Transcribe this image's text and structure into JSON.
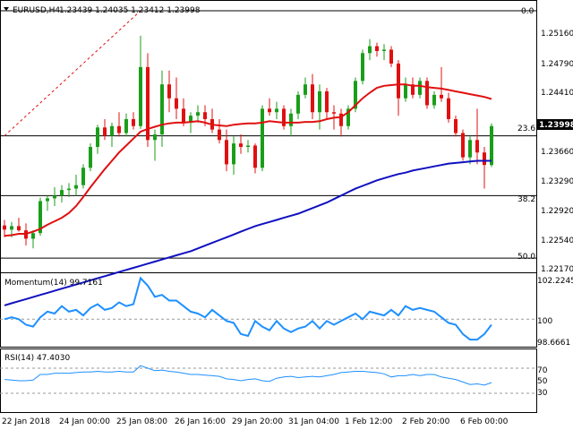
{
  "header": {
    "symbol_tf": "EURUSD,H4",
    "ohlc": "1.23439 1.24035 1.23412 1.23998"
  },
  "price_scale": {
    "labels": [
      "1.25160",
      "1.24790",
      "1.24410",
      "1.23660",
      "1.23290",
      "1.22920",
      "1.22540",
      "1.22170"
    ],
    "current": "1.23998"
  },
  "fibo": {
    "top": "0.0",
    "l236": "23.6",
    "l382": "38.2",
    "l50": "50.0"
  },
  "momentum": {
    "title": "Momentum(14) 99.7161",
    "labels": [
      "102.2245",
      "100",
      "98.6661"
    ]
  },
  "rsi": {
    "title": "RSI(14) 47.4030",
    "labels": [
      "70",
      "50",
      "30"
    ]
  },
  "time_axis": [
    "22 Jan 2018",
    "24 Jan 00:00",
    "25 Jan 08:00",
    "26 Jan 16:00",
    "29 Jan 20:00",
    "31 Jan 04:00",
    "1 Feb 12:00",
    "2 Feb 20:00",
    "6 Feb 00:00"
  ],
  "colors": {
    "bull": "#1a9e1a",
    "bear": "#e01010",
    "sma20": "#e01010",
    "sma100": "#1010c0",
    "indicator": "#1e90ff",
    "fibo_line": "#000000",
    "trend": "#e01010"
  },
  "chart_data": [
    {
      "type": "candlestick",
      "title": "EURUSD,H4",
      "ylim": [
        1.2205,
        1.2566
      ],
      "candles": [
        {
          "o": 1.2257,
          "h": 1.2265,
          "l": 1.224,
          "c": 1.2251
        },
        {
          "o": 1.2251,
          "h": 1.2262,
          "l": 1.224,
          "c": 1.2256
        },
        {
          "o": 1.2256,
          "h": 1.2268,
          "l": 1.2248,
          "c": 1.225
        },
        {
          "o": 1.225,
          "h": 1.226,
          "l": 1.2228,
          "c": 1.2238
        },
        {
          "o": 1.2238,
          "h": 1.225,
          "l": 1.2224,
          "c": 1.2246
        },
        {
          "o": 1.2246,
          "h": 1.2297,
          "l": 1.2242,
          "c": 1.2292
        },
        {
          "o": 1.2292,
          "h": 1.23,
          "l": 1.2278,
          "c": 1.2296
        },
        {
          "o": 1.2296,
          "h": 1.2312,
          "l": 1.2285,
          "c": 1.23
        },
        {
          "o": 1.23,
          "h": 1.2315,
          "l": 1.229,
          "c": 1.2308
        },
        {
          "o": 1.2308,
          "h": 1.2318,
          "l": 1.2298,
          "c": 1.231
        },
        {
          "o": 1.231,
          "h": 1.233,
          "l": 1.23,
          "c": 1.2315
        },
        {
          "o": 1.2315,
          "h": 1.2345,
          "l": 1.231,
          "c": 1.234
        },
        {
          "o": 1.234,
          "h": 1.2375,
          "l": 1.2335,
          "c": 1.237
        },
        {
          "o": 1.237,
          "h": 1.2402,
          "l": 1.236,
          "c": 1.2398
        },
        {
          "o": 1.2398,
          "h": 1.241,
          "l": 1.238,
          "c": 1.2386
        },
        {
          "o": 1.2386,
          "h": 1.2405,
          "l": 1.237,
          "c": 1.24
        },
        {
          "o": 1.24,
          "h": 1.242,
          "l": 1.2385,
          "c": 1.239
        },
        {
          "o": 1.239,
          "h": 1.2418,
          "l": 1.2385,
          "c": 1.241
        },
        {
          "o": 1.241,
          "h": 1.242,
          "l": 1.2395,
          "c": 1.24
        },
        {
          "o": 1.24,
          "h": 1.253,
          "l": 1.2396,
          "c": 1.2485
        },
        {
          "o": 1.2485,
          "h": 1.2505,
          "l": 1.237,
          "c": 1.238
        },
        {
          "o": 1.238,
          "h": 1.2395,
          "l": 1.235,
          "c": 1.2388
        },
        {
          "o": 1.2388,
          "h": 1.248,
          "l": 1.237,
          "c": 1.246
        },
        {
          "o": 1.246,
          "h": 1.248,
          "l": 1.242,
          "c": 1.244
        },
        {
          "o": 1.244,
          "h": 1.247,
          "l": 1.241,
          "c": 1.2425
        },
        {
          "o": 1.2425,
          "h": 1.244,
          "l": 1.24,
          "c": 1.2405
        },
        {
          "o": 1.2405,
          "h": 1.242,
          "l": 1.239,
          "c": 1.2415
        },
        {
          "o": 1.2415,
          "h": 1.243,
          "l": 1.2405,
          "c": 1.242
        },
        {
          "o": 1.242,
          "h": 1.243,
          "l": 1.24,
          "c": 1.241
        },
        {
          "o": 1.241,
          "h": 1.2425,
          "l": 1.239,
          "c": 1.2395
        },
        {
          "o": 1.2395,
          "h": 1.241,
          "l": 1.2375,
          "c": 1.238
        },
        {
          "o": 1.238,
          "h": 1.2395,
          "l": 1.2335,
          "c": 1.2345
        },
        {
          "o": 1.2345,
          "h": 1.2385,
          "l": 1.233,
          "c": 1.2375
        },
        {
          "o": 1.2375,
          "h": 1.2388,
          "l": 1.236,
          "c": 1.237
        },
        {
          "o": 1.237,
          "h": 1.238,
          "l": 1.2362,
          "c": 1.2372
        },
        {
          "o": 1.2372,
          "h": 1.2375,
          "l": 1.2332,
          "c": 1.234
        },
        {
          "o": 1.234,
          "h": 1.243,
          "l": 1.2335,
          "c": 1.2425
        },
        {
          "o": 1.2425,
          "h": 1.244,
          "l": 1.2415,
          "c": 1.242
        },
        {
          "o": 1.242,
          "h": 1.2435,
          "l": 1.241,
          "c": 1.2425
        },
        {
          "o": 1.2425,
          "h": 1.243,
          "l": 1.2395,
          "c": 1.24
        },
        {
          "o": 1.24,
          "h": 1.2425,
          "l": 1.2385,
          "c": 1.2418
        },
        {
          "o": 1.2418,
          "h": 1.245,
          "l": 1.241,
          "c": 1.2445
        },
        {
          "o": 1.2445,
          "h": 1.247,
          "l": 1.244,
          "c": 1.246
        },
        {
          "o": 1.246,
          "h": 1.2475,
          "l": 1.241,
          "c": 1.242
        },
        {
          "o": 1.242,
          "h": 1.246,
          "l": 1.2395,
          "c": 1.245
        },
        {
          "o": 1.245,
          "h": 1.2455,
          "l": 1.241,
          "c": 1.242
        },
        {
          "o": 1.242,
          "h": 1.243,
          "l": 1.2395,
          "c": 1.2418
        },
        {
          "o": 1.2418,
          "h": 1.2425,
          "l": 1.2385,
          "c": 1.24
        },
        {
          "o": 1.24,
          "h": 1.243,
          "l": 1.2395,
          "c": 1.2425
        },
        {
          "o": 1.2425,
          "h": 1.247,
          "l": 1.242,
          "c": 1.2465
        },
        {
          "o": 1.2465,
          "h": 1.251,
          "l": 1.246,
          "c": 1.2505
        },
        {
          "o": 1.2505,
          "h": 1.2525,
          "l": 1.2495,
          "c": 1.2515
        },
        {
          "o": 1.2515,
          "h": 1.252,
          "l": 1.25,
          "c": 1.2508
        },
        {
          "o": 1.2508,
          "h": 1.2518,
          "l": 1.2495,
          "c": 1.251
        },
        {
          "o": 1.251,
          "h": 1.2515,
          "l": 1.2485,
          "c": 1.249
        },
        {
          "o": 1.249,
          "h": 1.2495,
          "l": 1.2415,
          "c": 1.244
        },
        {
          "o": 1.244,
          "h": 1.247,
          "l": 1.2435,
          "c": 1.246
        },
        {
          "o": 1.246,
          "h": 1.247,
          "l": 1.244,
          "c": 1.2445
        },
        {
          "o": 1.2445,
          "h": 1.247,
          "l": 1.244,
          "c": 1.2465
        },
        {
          "o": 1.2465,
          "h": 1.247,
          "l": 1.2425,
          "c": 1.243
        },
        {
          "o": 1.243,
          "h": 1.245,
          "l": 1.2425,
          "c": 1.2445
        },
        {
          "o": 1.2445,
          "h": 1.2485,
          "l": 1.2435,
          "c": 1.244
        },
        {
          "o": 1.244,
          "h": 1.2448,
          "l": 1.2405,
          "c": 1.241
        },
        {
          "o": 1.241,
          "h": 1.2415,
          "l": 1.2385,
          "c": 1.239
        },
        {
          "o": 1.239,
          "h": 1.2395,
          "l": 1.235,
          "c": 1.2355
        },
        {
          "o": 1.2355,
          "h": 1.2385,
          "l": 1.2345,
          "c": 1.238
        },
        {
          "o": 1.238,
          "h": 1.2425,
          "l": 1.2345,
          "c": 1.2362
        },
        {
          "o": 1.2362,
          "h": 1.237,
          "l": 1.231,
          "c": 1.2344
        },
        {
          "o": 1.2344,
          "h": 1.2404,
          "l": 1.2341,
          "c": 1.24
        }
      ],
      "sma20": [
        1.2242,
        1.2243,
        1.2245,
        1.2245,
        1.2248,
        1.2252,
        1.2258,
        1.2263,
        1.2268,
        1.2275,
        1.2285,
        1.2298,
        1.2312,
        1.2325,
        1.2338,
        1.235,
        1.2362,
        1.2372,
        1.2382,
        1.2392,
        1.2396,
        1.2399,
        1.2402,
        1.2404,
        1.2405,
        1.2405,
        1.2406,
        1.2407,
        1.2405,
        1.2402,
        1.2401,
        1.24,
        1.2402,
        1.2403,
        1.2404,
        1.2404,
        1.2405,
        1.2407,
        1.2406,
        1.2405,
        1.2405,
        1.2405,
        1.2406,
        1.2406,
        1.2407,
        1.241,
        1.2412,
        1.2413,
        1.242,
        1.243,
        1.244,
        1.2448,
        1.2455,
        1.2458,
        1.2459,
        1.246,
        1.246,
        1.2458,
        1.2458,
        1.2456,
        1.2455,
        1.2454,
        1.2452,
        1.245,
        1.2448,
        1.2446,
        1.2444,
        1.2442,
        1.2439
      ],
      "sma100": [
        1.2142,
        1.2145,
        1.2148,
        1.2151,
        1.2154,
        1.2157,
        1.216,
        1.2163,
        1.2166,
        1.2169,
        1.2172,
        1.2175,
        1.2178,
        1.2181,
        1.2184,
        1.2187,
        1.219,
        1.2193,
        1.2196,
        1.2199,
        1.2202,
        1.2205,
        1.2208,
        1.2211,
        1.2214,
        1.2217,
        1.222,
        1.2224,
        1.2228,
        1.2232,
        1.2236,
        1.224,
        1.2244,
        1.2248,
        1.2252,
        1.2256,
        1.2259,
        1.2262,
        1.2265,
        1.2268,
        1.2271,
        1.2274,
        1.2278,
        1.2282,
        1.2286,
        1.229,
        1.2295,
        1.23,
        1.2305,
        1.231,
        1.2314,
        1.2318,
        1.2322,
        1.2325,
        1.2328,
        1.2331,
        1.2333,
        1.2336,
        1.2338,
        1.234,
        1.2342,
        1.2344,
        1.2346,
        1.2347,
        1.2348,
        1.2349,
        1.235,
        1.235,
        1.235
      ],
      "fibo_levels": {
        "0.0": 1.2566,
        "23.6": 1.2386,
        "38.2": 1.23,
        "50.0": 1.221
      }
    },
    {
      "type": "line",
      "title": "Momentum(14) 99.7161",
      "ylim": [
        98.6661,
        102.2245
      ],
      "values": [
        100.0,
        100.1,
        100.0,
        99.7,
        99.6,
        100.1,
        100.4,
        100.3,
        100.7,
        100.4,
        100.5,
        100.2,
        100.6,
        100.8,
        100.5,
        100.6,
        100.9,
        100.7,
        100.8,
        102.2,
        101.8,
        101.2,
        101.3,
        101.0,
        101.0,
        100.7,
        100.4,
        100.3,
        100.1,
        100.5,
        100.2,
        99.9,
        99.8,
        99.2,
        99.1,
        99.9,
        99.6,
        99.4,
        99.9,
        99.5,
        99.3,
        99.5,
        99.6,
        99.9,
        99.5,
        99.9,
        99.7,
        99.9,
        100.1,
        100.3,
        100.0,
        100.4,
        100.3,
        100.2,
        100.5,
        100.2,
        100.7,
        100.5,
        100.6,
        100.5,
        100.4,
        100.1,
        99.8,
        99.7,
        99.2,
        98.9,
        98.9,
        99.2,
        99.7
      ],
      "ref_line": 100
    },
    {
      "type": "line",
      "title": "RSI(14) 47.4030",
      "ylim": [
        0,
        100
      ],
      "values": [
        52,
        51,
        50,
        50,
        51,
        60,
        60,
        62,
        62,
        62,
        63,
        64,
        64,
        65,
        64,
        64,
        65,
        64,
        64,
        74,
        70,
        66,
        67,
        65,
        64,
        62,
        60,
        60,
        59,
        58,
        57,
        53,
        52,
        50,
        52,
        53,
        50,
        49,
        54,
        56,
        57,
        55,
        56,
        57,
        56,
        58,
        60,
        63,
        64,
        65,
        65,
        64,
        63,
        61,
        56,
        58,
        58,
        60,
        58,
        60,
        60,
        56,
        54,
        52,
        48,
        44,
        45,
        43,
        47
      ],
      "ref_lines": [
        70,
        30
      ]
    }
  ]
}
